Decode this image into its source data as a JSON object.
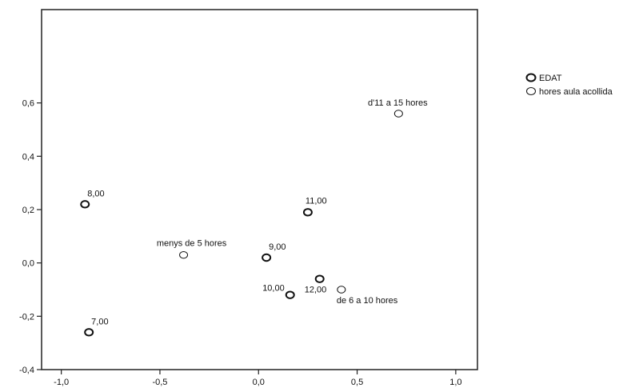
{
  "chart_data": {
    "type": "scatter",
    "xlim": [
      -1.1,
      1.11
    ],
    "ylim": [
      -0.4,
      0.95
    ],
    "x_ticks": [
      {
        "value": -1.0,
        "label": "-1,0"
      },
      {
        "value": -0.5,
        "label": "-0,5"
      },
      {
        "value": 0.0,
        "label": "0,0"
      },
      {
        "value": 0.5,
        "label": "0,5"
      },
      {
        "value": 1.0,
        "label": "1,0"
      }
    ],
    "y_ticks": [
      {
        "value": -0.4,
        "label": "-0,4"
      },
      {
        "value": -0.2,
        "label": "-0,2"
      },
      {
        "value": 0.0,
        "label": "0,0"
      },
      {
        "value": 0.2,
        "label": "0,2"
      },
      {
        "value": 0.4,
        "label": "0,4"
      },
      {
        "value": 0.6,
        "label": "0,6"
      }
    ],
    "grid": false,
    "legend_position": "top-right",
    "series": [
      {
        "name": "EDAT",
        "marker": "bold-circle",
        "points": [
          {
            "label": "8,00",
            "x": -0.88,
            "y": 0.22
          },
          {
            "label": "7,00",
            "x": -0.86,
            "y": -0.26
          },
          {
            "label": "9,00",
            "x": 0.04,
            "y": 0.02
          },
          {
            "label": "10,00",
            "x": 0.16,
            "y": -0.12
          },
          {
            "label": "11,00",
            "x": 0.25,
            "y": 0.19
          },
          {
            "label": "12,00",
            "x": 0.31,
            "y": -0.06
          }
        ]
      },
      {
        "name": "hores aula acollida",
        "marker": "thin-circle",
        "points": [
          {
            "label": "menys de 5 hores",
            "x": -0.38,
            "y": 0.03
          },
          {
            "label": "d'11 a 15 hores",
            "x": 0.71,
            "y": 0.56
          },
          {
            "label": "de 6 a 10 hores",
            "x": 0.42,
            "y": -0.1
          }
        ]
      }
    ]
  }
}
